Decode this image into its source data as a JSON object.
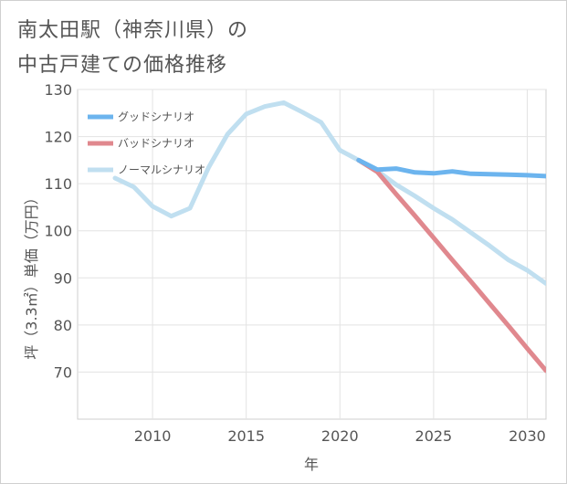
{
  "title": {
    "line1": "南太田駅（神奈川県）の",
    "line2": "中古戸建ての価格推移"
  },
  "chart_data": {
    "type": "line",
    "title": "南太田駅（神奈川県）の中古戸建ての価格推移",
    "xlabel": "年",
    "ylabel": "坪（3.3㎡）単価（万円）",
    "xlim": [
      2006,
      2031
    ],
    "ylim": [
      60,
      130
    ],
    "x_ticks": [
      2010,
      2015,
      2020,
      2025,
      2030
    ],
    "y_ticks": [
      70,
      80,
      90,
      100,
      110,
      120,
      130
    ],
    "grid": true,
    "legend_position": "top-left",
    "series": [
      {
        "name": "グッドシナリオ",
        "color": "#6cb4ee",
        "x": [
          2021,
          2022,
          2023,
          2024,
          2025,
          2026,
          2027,
          2028,
          2029,
          2030,
          2031
        ],
        "values": [
          115.0,
          113.0,
          113.2,
          112.4,
          112.2,
          112.6,
          112.1,
          112.0,
          111.9,
          111.8,
          111.6
        ]
      },
      {
        "name": "バッドシナリオ",
        "color": "#e0888e",
        "x": [
          2021,
          2022,
          2023,
          2024,
          2025,
          2026,
          2027,
          2028,
          2029,
          2030,
          2031
        ],
        "values": [
          115.0,
          112.5,
          107.8,
          103.2,
          98.5,
          93.8,
          89.2,
          84.5,
          79.8,
          75.0,
          70.3
        ]
      },
      {
        "name": "ノーマルシナリオ",
        "color": "#c0dff0",
        "x": [
          2008,
          2009,
          2010,
          2011,
          2012,
          2013,
          2014,
          2015,
          2016,
          2017,
          2018,
          2019,
          2020,
          2021,
          2022,
          2023,
          2024,
          2025,
          2026,
          2027,
          2028,
          2029,
          2030,
          2031
        ],
        "values": [
          111.2,
          109.3,
          105.2,
          103.1,
          104.8,
          113.5,
          120.5,
          124.8,
          126.4,
          127.2,
          125.2,
          123.0,
          117.1,
          115.0,
          112.7,
          109.8,
          107.4,
          104.8,
          102.4,
          99.6,
          96.8,
          93.8,
          91.6,
          88.8
        ]
      }
    ]
  }
}
